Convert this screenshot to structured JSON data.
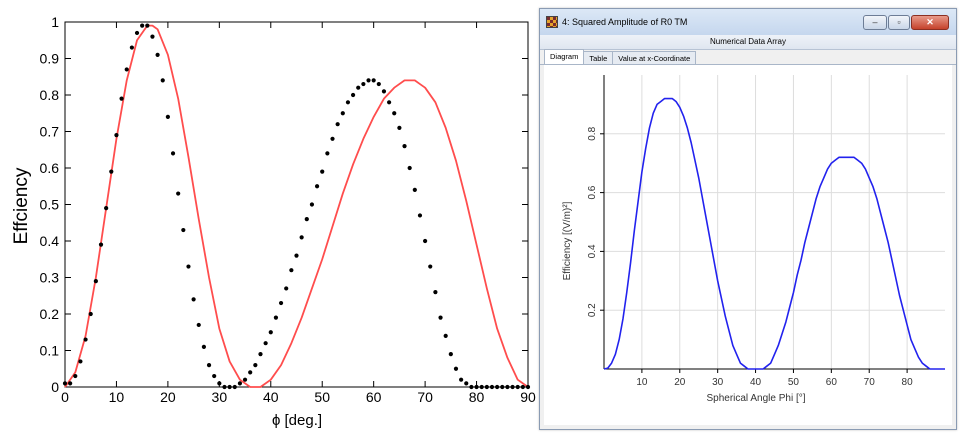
{
  "left": {
    "chart_data": {
      "type": "line",
      "ylabel": "Effciency",
      "xlabel": "ϕ [deg.]",
      "xlim": [
        0,
        90
      ],
      "ylim": [
        0,
        1
      ],
      "xticks": [
        "0",
        "10",
        "20",
        "30",
        "40",
        "50",
        "60",
        "70",
        "80",
        "90"
      ],
      "yticks": [
        "0",
        "0.1",
        "0.2",
        "0.3",
        "0.4",
        "0.5",
        "0.6",
        "0.7",
        "0.8",
        "0.9",
        "1"
      ],
      "grid": false,
      "series": [
        {
          "kind": "scatter",
          "color": "#000000",
          "x": [
            0,
            1,
            2,
            3,
            4,
            5,
            6,
            7,
            8,
            9,
            10,
            11,
            12,
            13,
            14,
            15,
            16,
            17,
            18,
            19,
            20,
            21,
            22,
            23,
            24,
            25,
            26,
            27,
            28,
            29,
            30,
            31,
            32,
            33,
            34,
            35,
            36,
            37,
            38,
            39,
            40,
            41,
            42,
            43,
            44,
            45,
            46,
            47,
            48,
            49,
            50,
            51,
            52,
            53,
            54,
            55,
            56,
            57,
            58,
            59,
            60,
            61,
            62,
            63,
            64,
            65,
            66,
            67,
            68,
            69,
            70,
            71,
            72,
            73,
            74,
            75,
            76,
            77,
            78,
            79,
            80,
            81,
            82,
            83,
            84,
            85,
            86,
            87,
            88,
            89,
            90
          ],
          "y": [
            0.01,
            0.01,
            0.03,
            0.07,
            0.13,
            0.2,
            0.29,
            0.39,
            0.49,
            0.59,
            0.69,
            0.79,
            0.87,
            0.93,
            0.97,
            0.99,
            0.99,
            0.96,
            0.91,
            0.84,
            0.74,
            0.64,
            0.53,
            0.43,
            0.33,
            0.24,
            0.17,
            0.11,
            0.06,
            0.03,
            0.01,
            0.0,
            0.0,
            0.0,
            0.01,
            0.02,
            0.04,
            0.06,
            0.09,
            0.12,
            0.15,
            0.19,
            0.23,
            0.27,
            0.32,
            0.36,
            0.41,
            0.46,
            0.5,
            0.55,
            0.59,
            0.64,
            0.68,
            0.72,
            0.75,
            0.78,
            0.8,
            0.82,
            0.83,
            0.84,
            0.84,
            0.83,
            0.81,
            0.78,
            0.75,
            0.71,
            0.66,
            0.6,
            0.54,
            0.47,
            0.4,
            0.33,
            0.26,
            0.19,
            0.14,
            0.09,
            0.05,
            0.02,
            0.01,
            0.0,
            0.0,
            0.0,
            0.0,
            0.0,
            0.0,
            0.0,
            0.0,
            0.0,
            0.0,
            0.0,
            0.0
          ]
        },
        {
          "kind": "line",
          "color": "#ff4d4d",
          "x": [
            0,
            2,
            4,
            6,
            8,
            10,
            12,
            14,
            16,
            17,
            18,
            20,
            22,
            24,
            26,
            28,
            30,
            32,
            34,
            36,
            38,
            40,
            42,
            44,
            46,
            48,
            50,
            52,
            54,
            56,
            58,
            60,
            62,
            64,
            66,
            68,
            69,
            70,
            72,
            74,
            76,
            78,
            80,
            82,
            84,
            86,
            88,
            90
          ],
          "y": [
            0.0,
            0.04,
            0.14,
            0.3,
            0.49,
            0.68,
            0.84,
            0.95,
            0.99,
            0.99,
            0.98,
            0.91,
            0.79,
            0.63,
            0.46,
            0.3,
            0.16,
            0.07,
            0.02,
            0.0,
            0.0,
            0.02,
            0.06,
            0.12,
            0.19,
            0.27,
            0.35,
            0.44,
            0.53,
            0.61,
            0.68,
            0.74,
            0.79,
            0.82,
            0.84,
            0.84,
            0.83,
            0.82,
            0.78,
            0.71,
            0.62,
            0.51,
            0.39,
            0.27,
            0.16,
            0.08,
            0.02,
            0.0
          ]
        }
      ]
    }
  },
  "window": {
    "title": "4: Squared Amplitude of R0 TM",
    "header": "Numerical Data Array",
    "tabs": [
      "Diagram",
      "Table",
      "Value at x-Coordinate"
    ],
    "active_tab": 0,
    "minimize_glyph": "–",
    "maximize_glyph": "▫",
    "close_glyph": "✕"
  },
  "right": {
    "chart_data": {
      "type": "line",
      "xlabel": "Spherical Angle Phi [°]",
      "ylabel": "Efficiency [(V/m)²]",
      "xlim": [
        0,
        90
      ],
      "ylim": [
        0,
        1
      ],
      "xticks": [
        "10",
        "20",
        "30",
        "40",
        "50",
        "60",
        "70",
        "80"
      ],
      "yticks": [
        "0.2",
        "0.4",
        "0.6",
        "0.8"
      ],
      "grid": true,
      "series": [
        {
          "color": "#2222ee",
          "x": [
            0,
            1,
            2,
            3,
            4,
            5,
            6,
            7,
            8,
            9,
            10,
            11,
            12,
            13,
            14,
            15,
            16,
            17,
            18,
            19,
            20,
            21,
            22,
            23,
            24,
            25,
            26,
            27,
            28,
            29,
            30,
            31,
            32,
            33,
            34,
            35,
            36,
            37,
            38,
            39,
            40,
            41,
            42,
            43,
            44,
            45,
            46,
            47,
            48,
            49,
            50,
            51,
            52,
            53,
            54,
            55,
            56,
            57,
            58,
            59,
            60,
            61,
            62,
            63,
            64,
            65,
            66,
            67,
            68,
            69,
            70,
            71,
            72,
            73,
            74,
            75,
            76,
            77,
            78,
            79,
            80,
            81,
            82,
            83,
            84,
            85,
            86,
            87,
            88,
            89,
            90
          ],
          "y": [
            0.0,
            0.003,
            0.02,
            0.05,
            0.1,
            0.17,
            0.26,
            0.36,
            0.47,
            0.57,
            0.67,
            0.75,
            0.82,
            0.87,
            0.9,
            0.91,
            0.92,
            0.92,
            0.92,
            0.91,
            0.89,
            0.86,
            0.82,
            0.77,
            0.71,
            0.65,
            0.58,
            0.51,
            0.44,
            0.37,
            0.3,
            0.24,
            0.18,
            0.13,
            0.08,
            0.05,
            0.02,
            0.01,
            0.0,
            0.0,
            0.0,
            0.0,
            0.0,
            0.01,
            0.02,
            0.05,
            0.08,
            0.12,
            0.16,
            0.21,
            0.26,
            0.32,
            0.37,
            0.43,
            0.48,
            0.53,
            0.58,
            0.62,
            0.65,
            0.68,
            0.7,
            0.71,
            0.72,
            0.72,
            0.72,
            0.72,
            0.72,
            0.71,
            0.7,
            0.68,
            0.65,
            0.62,
            0.58,
            0.53,
            0.48,
            0.43,
            0.37,
            0.31,
            0.25,
            0.2,
            0.15,
            0.1,
            0.07,
            0.04,
            0.02,
            0.01,
            0.0,
            0.0,
            0.0,
            0.0,
            0.0
          ]
        }
      ]
    }
  }
}
